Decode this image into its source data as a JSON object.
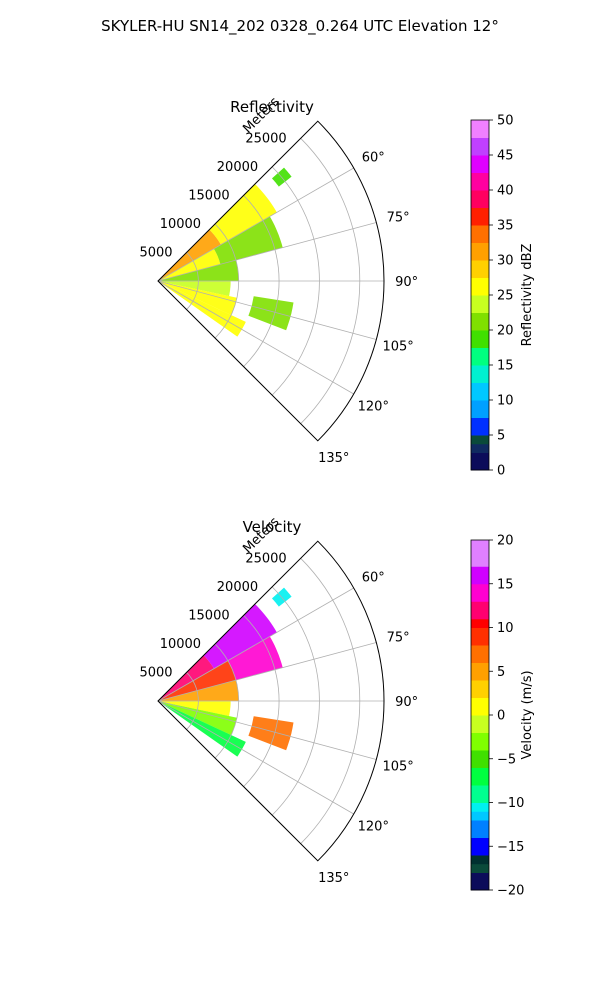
{
  "figure": {
    "title": "SKYLER-HU  SN14_202  0328_0.264 UTC Elevation 12°"
  },
  "chart_data": [
    {
      "type": "heatmap",
      "title": "Reflectivity",
      "radial_label": "Meters",
      "radial_ticks": [
        5000,
        10000,
        15000,
        20000,
        25000
      ],
      "radial_tick_labels": [
        "5000",
        "10000",
        "15000",
        "20000",
        "25000"
      ],
      "rlim": [
        0,
        28000
      ],
      "angle_ticks": [
        60,
        75,
        90,
        105,
        120,
        135
      ],
      "angle_tick_labels": [
        "60°",
        "75°",
        "90°",
        "105°",
        "120°",
        "135°"
      ],
      "angle_range": [
        45,
        135
      ],
      "grid": true,
      "colorbar": {
        "label": "Reflectivity dBZ",
        "range": [
          0,
          50
        ],
        "ticks": [
          0,
          5,
          10,
          15,
          20,
          25,
          30,
          35,
          40,
          45,
          50
        ],
        "tick_labels": [
          "0",
          "5",
          "10",
          "15",
          "20",
          "25",
          "30",
          "35",
          "40",
          "45",
          "50"
        ]
      },
      "echoes": [
        {
          "az": [
            45,
            60
          ],
          "r": [
            0,
            9000
          ],
          "value": 30
        },
        {
          "az": [
            45,
            60
          ],
          "r": [
            9000,
            17000
          ],
          "value": 27
        },
        {
          "az": [
            60,
            75
          ],
          "r": [
            0,
            8000
          ],
          "value": 26
        },
        {
          "az": [
            60,
            75
          ],
          "r": [
            8000,
            16000
          ],
          "value": 22
        },
        {
          "az": [
            75,
            90
          ],
          "r": [
            0,
            10000
          ],
          "value": 21
        },
        {
          "az": [
            90,
            102
          ],
          "r": [
            0,
            9000
          ],
          "value": 23
        },
        {
          "az": [
            102,
            115
          ],
          "r": [
            0,
            10000
          ],
          "value": 26
        },
        {
          "az": [
            115,
            125
          ],
          "r": [
            0,
            12000
          ],
          "value": 27
        },
        {
          "az": [
            99,
            111
          ],
          "r": [
            12000,
            17000
          ],
          "value": 22
        },
        {
          "az": [
            48,
            52
          ],
          "r": [
            19000,
            21000
          ],
          "value": 18
        }
      ]
    },
    {
      "type": "heatmap",
      "title": "Velocity",
      "radial_label": "Meters",
      "radial_ticks": [
        5000,
        10000,
        15000,
        20000,
        25000
      ],
      "radial_tick_labels": [
        "5000",
        "10000",
        "15000",
        "20000",
        "25000"
      ],
      "rlim": [
        0,
        28000
      ],
      "angle_ticks": [
        60,
        75,
        90,
        105,
        120,
        135
      ],
      "angle_tick_labels": [
        "60°",
        "75°",
        "90°",
        "105°",
        "120°",
        "135°"
      ],
      "angle_range": [
        45,
        135
      ],
      "grid": true,
      "colorbar": {
        "label": "Velocity (m/s)",
        "range": [
          -20,
          20
        ],
        "ticks": [
          -20,
          -15,
          -10,
          -5,
          0,
          5,
          10,
          15,
          20
        ],
        "tick_labels": [
          "−20",
          "−15",
          "−10",
          "−5",
          "0",
          "5",
          "10",
          "15",
          "20"
        ]
      },
      "echoes": [
        {
          "az": [
            45,
            60
          ],
          "r": [
            0,
            8000
          ],
          "value": 11
        },
        {
          "az": [
            45,
            60
          ],
          "r": [
            8000,
            17000
          ],
          "value": 15
        },
        {
          "az": [
            60,
            75
          ],
          "r": [
            0,
            10000
          ],
          "value": 9
        },
        {
          "az": [
            60,
            75
          ],
          "r": [
            10000,
            16000
          ],
          "value": 13
        },
        {
          "az": [
            75,
            90
          ],
          "r": [
            0,
            10000
          ],
          "value": 4
        },
        {
          "az": [
            90,
            102
          ],
          "r": [
            0,
            9000
          ],
          "value": 1
        },
        {
          "az": [
            102,
            115
          ],
          "r": [
            0,
            10000
          ],
          "value": -3
        },
        {
          "az": [
            115,
            125
          ],
          "r": [
            0,
            12000
          ],
          "value": -8
        },
        {
          "az": [
            99,
            111
          ],
          "r": [
            12000,
            17000
          ],
          "value": 6
        },
        {
          "az": [
            48,
            52
          ],
          "r": [
            19000,
            21000
          ],
          "value": -11
        }
      ]
    }
  ]
}
